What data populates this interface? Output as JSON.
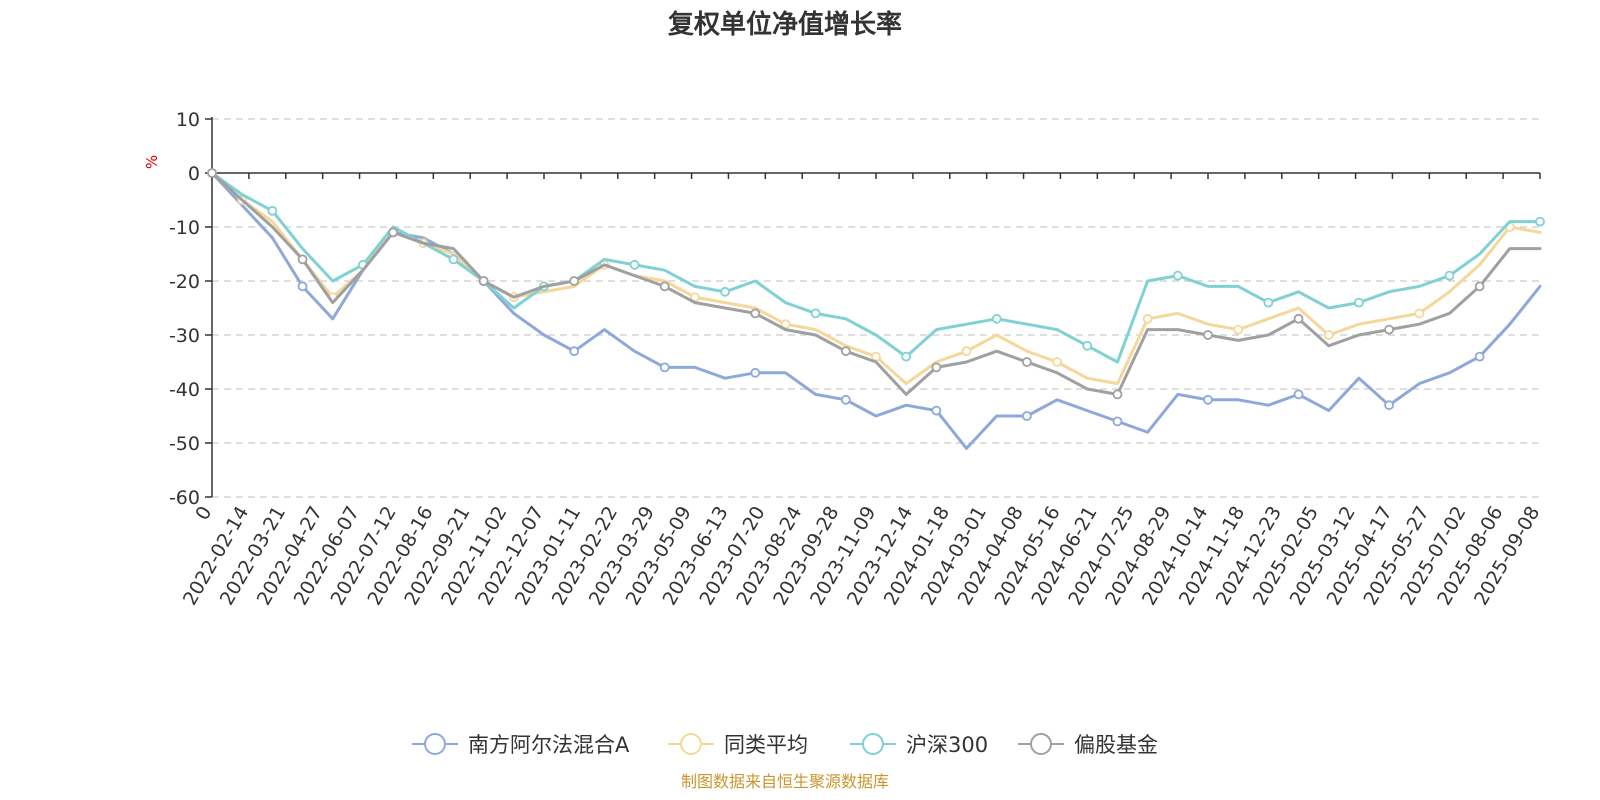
{
  "chart_data": {
    "type": "line",
    "title": "复权单位净值增长率",
    "ylabel": "%",
    "xlabel": "",
    "ylim": [
      -60,
      10
    ],
    "yticks": [
      10,
      0,
      -10,
      -20,
      -30,
      -40,
      -50,
      -60
    ],
    "x_ticks": [
      "0",
      "2022-02-14",
      "2022-03-21",
      "2022-04-27",
      "2022-06-07",
      "2022-07-12",
      "2022-08-16",
      "2022-09-21",
      "2022-11-02",
      "2022-12-07",
      "2023-01-11",
      "2023-02-22",
      "2023-03-29",
      "2023-05-09",
      "2023-06-13",
      "2023-07-20",
      "2023-08-24",
      "2023-09-28",
      "2023-11-09",
      "2023-12-14",
      "2024-01-18",
      "2024-03-01",
      "2024-04-08",
      "2024-05-16",
      "2024-06-21",
      "2024-07-25",
      "2024-08-29",
      "2024-10-14",
      "2024-11-18",
      "2024-12-23",
      "2025-02-05",
      "2025-03-12",
      "2025-04-17",
      "2025-05-27",
      "2025-07-02",
      "2025-08-06",
      "2025-09-08"
    ],
    "grid": true,
    "legend_position": "bottom",
    "series": [
      {
        "name": "南方阿尔法混合A",
        "color": "#8ea9d9",
        "values": [
          0,
          -6,
          -12,
          -21,
          -27,
          -18,
          -11,
          -12,
          -15,
          -20,
          -26,
          -30,
          -33,
          -29,
          -33,
          -36,
          -36,
          -38,
          -37,
          -37,
          -41,
          -42,
          -45,
          -43,
          -44,
          -51,
          -45,
          -45,
          -42,
          -44,
          -46,
          -48,
          -41,
          -42,
          -42,
          -43,
          -41,
          -44,
          -38,
          -43,
          -39,
          -37,
          -34,
          -28,
          -21
        ]
      },
      {
        "name": "同类平均",
        "color": "#f5d79a",
        "values": [
          0,
          -5,
          -9,
          -16,
          -23,
          -18,
          -11,
          -13,
          -15,
          -20,
          -23,
          -22,
          -21,
          -17,
          -19,
          -20,
          -23,
          -24,
          -25,
          -28,
          -29,
          -32,
          -34,
          -39,
          -35,
          -33,
          -30,
          -33,
          -35,
          -38,
          -39,
          -27,
          -26,
          -28,
          -29,
          -27,
          -25,
          -30,
          -28,
          -27,
          -26,
          -22,
          -17,
          -10,
          -11
        ]
      },
      {
        "name": "沪深300",
        "color": "#7fd1d4",
        "values": [
          0,
          -4,
          -7,
          -14,
          -20,
          -17,
          -10,
          -13,
          -16,
          -20,
          -25,
          -21,
          -20,
          -16,
          -17,
          -18,
          -21,
          -22,
          -20,
          -24,
          -26,
          -27,
          -30,
          -34,
          -29,
          -28,
          -27,
          -28,
          -29,
          -32,
          -35,
          -20,
          -19,
          -21,
          -21,
          -24,
          -22,
          -25,
          -24,
          -22,
          -21,
          -19,
          -15,
          -9,
          -9
        ]
      },
      {
        "name": "偏股基金",
        "color": "#a0a0a0",
        "values": [
          0,
          -5,
          -10,
          -16,
          -24,
          -18,
          -11,
          -13,
          -14,
          -20,
          -23,
          -21,
          -20,
          -17,
          -19,
          -21,
          -24,
          -25,
          -26,
          -29,
          -30,
          -33,
          -35,
          -41,
          -36,
          -35,
          -33,
          -35,
          -37,
          -40,
          -41,
          -29,
          -29,
          -30,
          -31,
          -30,
          -27,
          -32,
          -30,
          -29,
          -28,
          -26,
          -21,
          -14,
          -14
        ]
      }
    ]
  },
  "source_note": "制图数据来自恒生聚源数据库"
}
